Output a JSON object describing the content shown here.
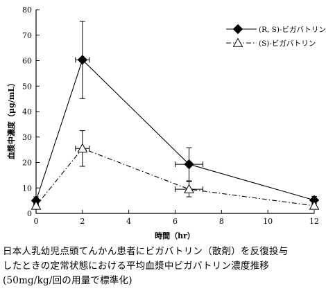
{
  "chart_data": {
    "type": "line",
    "xlabel": "時間（hr）",
    "ylabel": "血漿中濃度（μg/mL）",
    "xlim": [
      0,
      12
    ],
    "ylim": [
      0,
      80
    ],
    "xticks": [
      0,
      2,
      4,
      6,
      8,
      10,
      12
    ],
    "yticks": [
      0,
      10,
      20,
      30,
      40,
      50,
      60,
      70,
      80
    ],
    "grid": false,
    "legend_position": "top-right",
    "series": [
      {
        "name": "(R, S)-ビガバトリン",
        "marker": "filled-diamond",
        "line_style": "solid",
        "points": [
          {
            "x": 0,
            "y": 5.0,
            "yerr": 1.5,
            "xerr": 0
          },
          {
            "x": 2,
            "y": 60.3,
            "yerr": 15.2,
            "xerr": 0.3
          },
          {
            "x": 6.6,
            "y": 19.3,
            "yerr": 6.5,
            "xerr": 0.6
          },
          {
            "x": 12,
            "y": 5.2,
            "yerr": 1.5,
            "xerr": 0
          }
        ]
      },
      {
        "name": "(S)-ビガバトリン",
        "marker": "open-triangle",
        "line_style": "dash-dot",
        "points": [
          {
            "x": 0,
            "y": 3.0,
            "yerr": 0.8,
            "xerr": 0
          },
          {
            "x": 2,
            "y": 25.5,
            "yerr": 7.0,
            "xerr": 0.3
          },
          {
            "x": 6.6,
            "y": 9.5,
            "yerr": 3.0,
            "xerr": 0.6
          },
          {
            "x": 12,
            "y": 3.0,
            "yerr": 0.8,
            "xerr": 0
          }
        ]
      }
    ]
  },
  "caption": {
    "line1": "日本人乳幼児点頭てんかん患者にビガバトリン（散剤）を反復投与",
    "line2": "したときの定常状態における平均血漿中ビガバトリン濃度推移",
    "line3": "(50mg/kg/回の用量で標準化)"
  }
}
